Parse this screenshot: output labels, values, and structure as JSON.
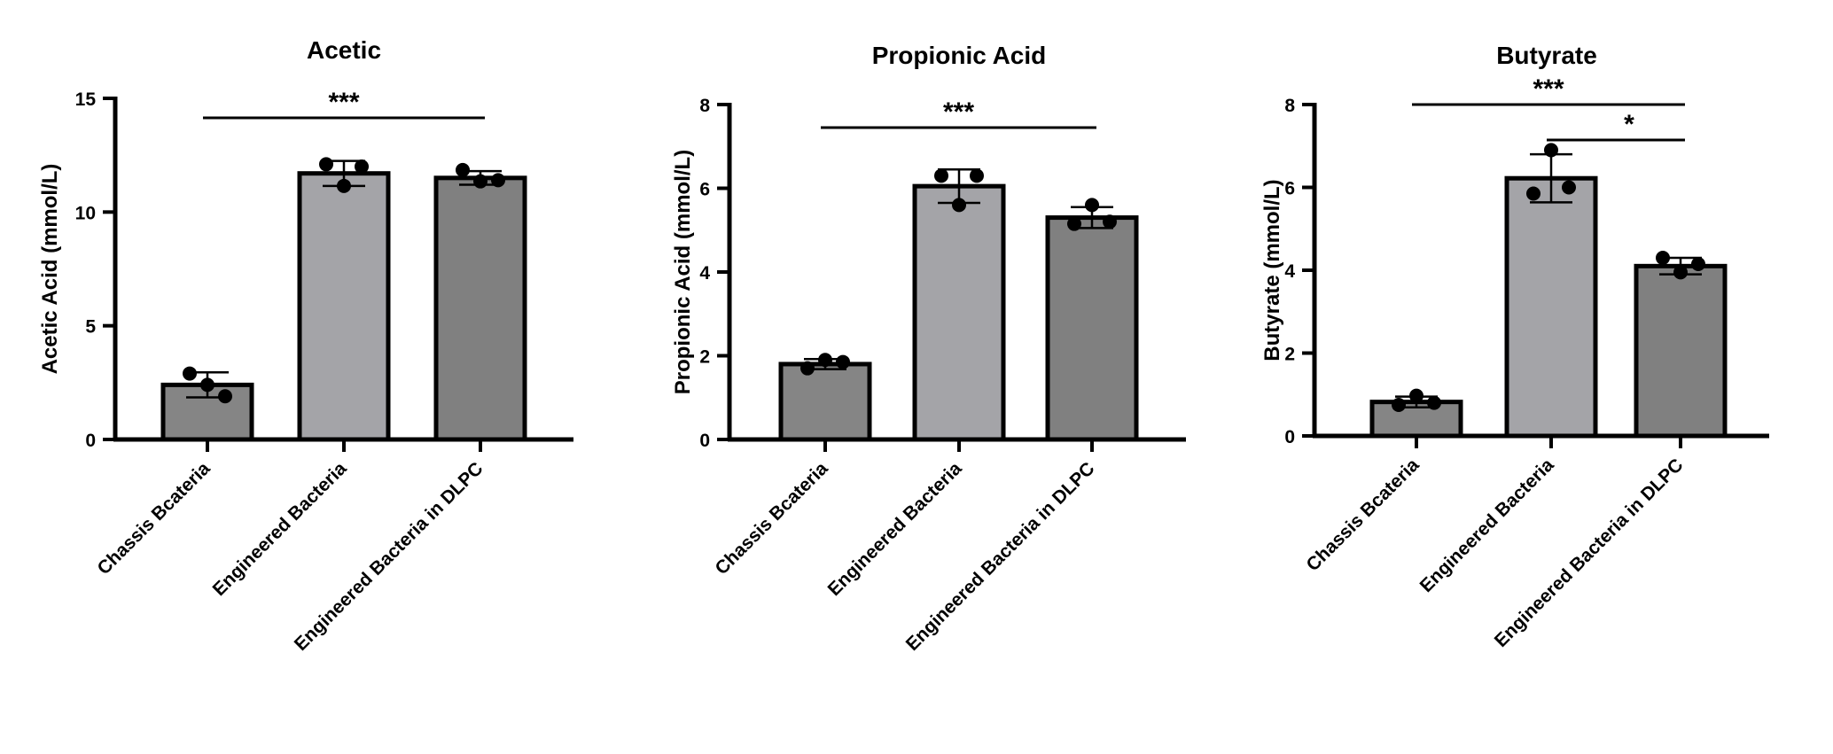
{
  "panels": [
    {
      "chart_data": {
        "type": "bar",
        "title": "Acetic",
        "ylabel": "Acetic Acid (mmol/L)",
        "ylim": [
          0,
          15
        ],
        "yticks": [
          0,
          5,
          10,
          15
        ],
        "categories": [
          "Chassis Bcateria",
          "Engineered Bacteria",
          "Engineered Bacteria in DLPC"
        ],
        "values": [
          2.4,
          11.7,
          11.5
        ],
        "errors": [
          0.55,
          0.55,
          0.3
        ],
        "points": [
          [
            2.9,
            2.4,
            1.9
          ],
          [
            12.1,
            11.15,
            12.0
          ],
          [
            11.85,
            11.35,
            11.4
          ]
        ],
        "bar_colors": [
          "#858585",
          "#a4a4a8",
          "#808080"
        ],
        "significance": [
          {
            "from": 0,
            "to": 2,
            "label": "***"
          }
        ]
      }
    },
    {
      "chart_data": {
        "type": "bar",
        "title": "Propionic Acid",
        "ylabel": "Propionic Acid (mmol/L)",
        "ylim": [
          0,
          8
        ],
        "yticks": [
          0,
          2,
          4,
          6,
          8
        ],
        "categories": [
          "Chassis Bcateria",
          "Engineered Bacteria",
          "Engineered Bacteria in DLPC"
        ],
        "values": [
          1.8,
          6.05,
          5.3
        ],
        "errors": [
          0.12,
          0.4,
          0.25
        ],
        "points": [
          [
            1.7,
            1.9,
            1.85
          ],
          [
            6.3,
            5.6,
            6.3
          ],
          [
            5.15,
            5.6,
            5.2
          ]
        ],
        "bar_colors": [
          "#858585",
          "#a4a4a8",
          "#808080"
        ],
        "significance": [
          {
            "from": 0,
            "to": 2,
            "label": "***"
          }
        ]
      }
    },
    {
      "chart_data": {
        "type": "bar",
        "title": "Butyrate",
        "ylabel": "Butyrate (mmol/L)",
        "ylim": [
          0,
          8
        ],
        "yticks": [
          0,
          2,
          4,
          6,
          8
        ],
        "categories": [
          "Chassis Bcateria",
          "Engineered Bacteria",
          "Engineered Bacteria in DLPC"
        ],
        "values": [
          0.82,
          6.22,
          4.1
        ],
        "errors": [
          0.13,
          0.58,
          0.2
        ],
        "points": [
          [
            0.75,
            0.97,
            0.8
          ],
          [
            5.85,
            6.9,
            6.0
          ],
          [
            4.3,
            3.95,
            4.15
          ]
        ],
        "bar_colors": [
          "#858585",
          "#a4a4a8",
          "#808080"
        ],
        "significance": [
          {
            "from": 0,
            "to": 2,
            "label": "***"
          },
          {
            "from": 1,
            "to": 2,
            "label": "*"
          }
        ]
      }
    }
  ]
}
